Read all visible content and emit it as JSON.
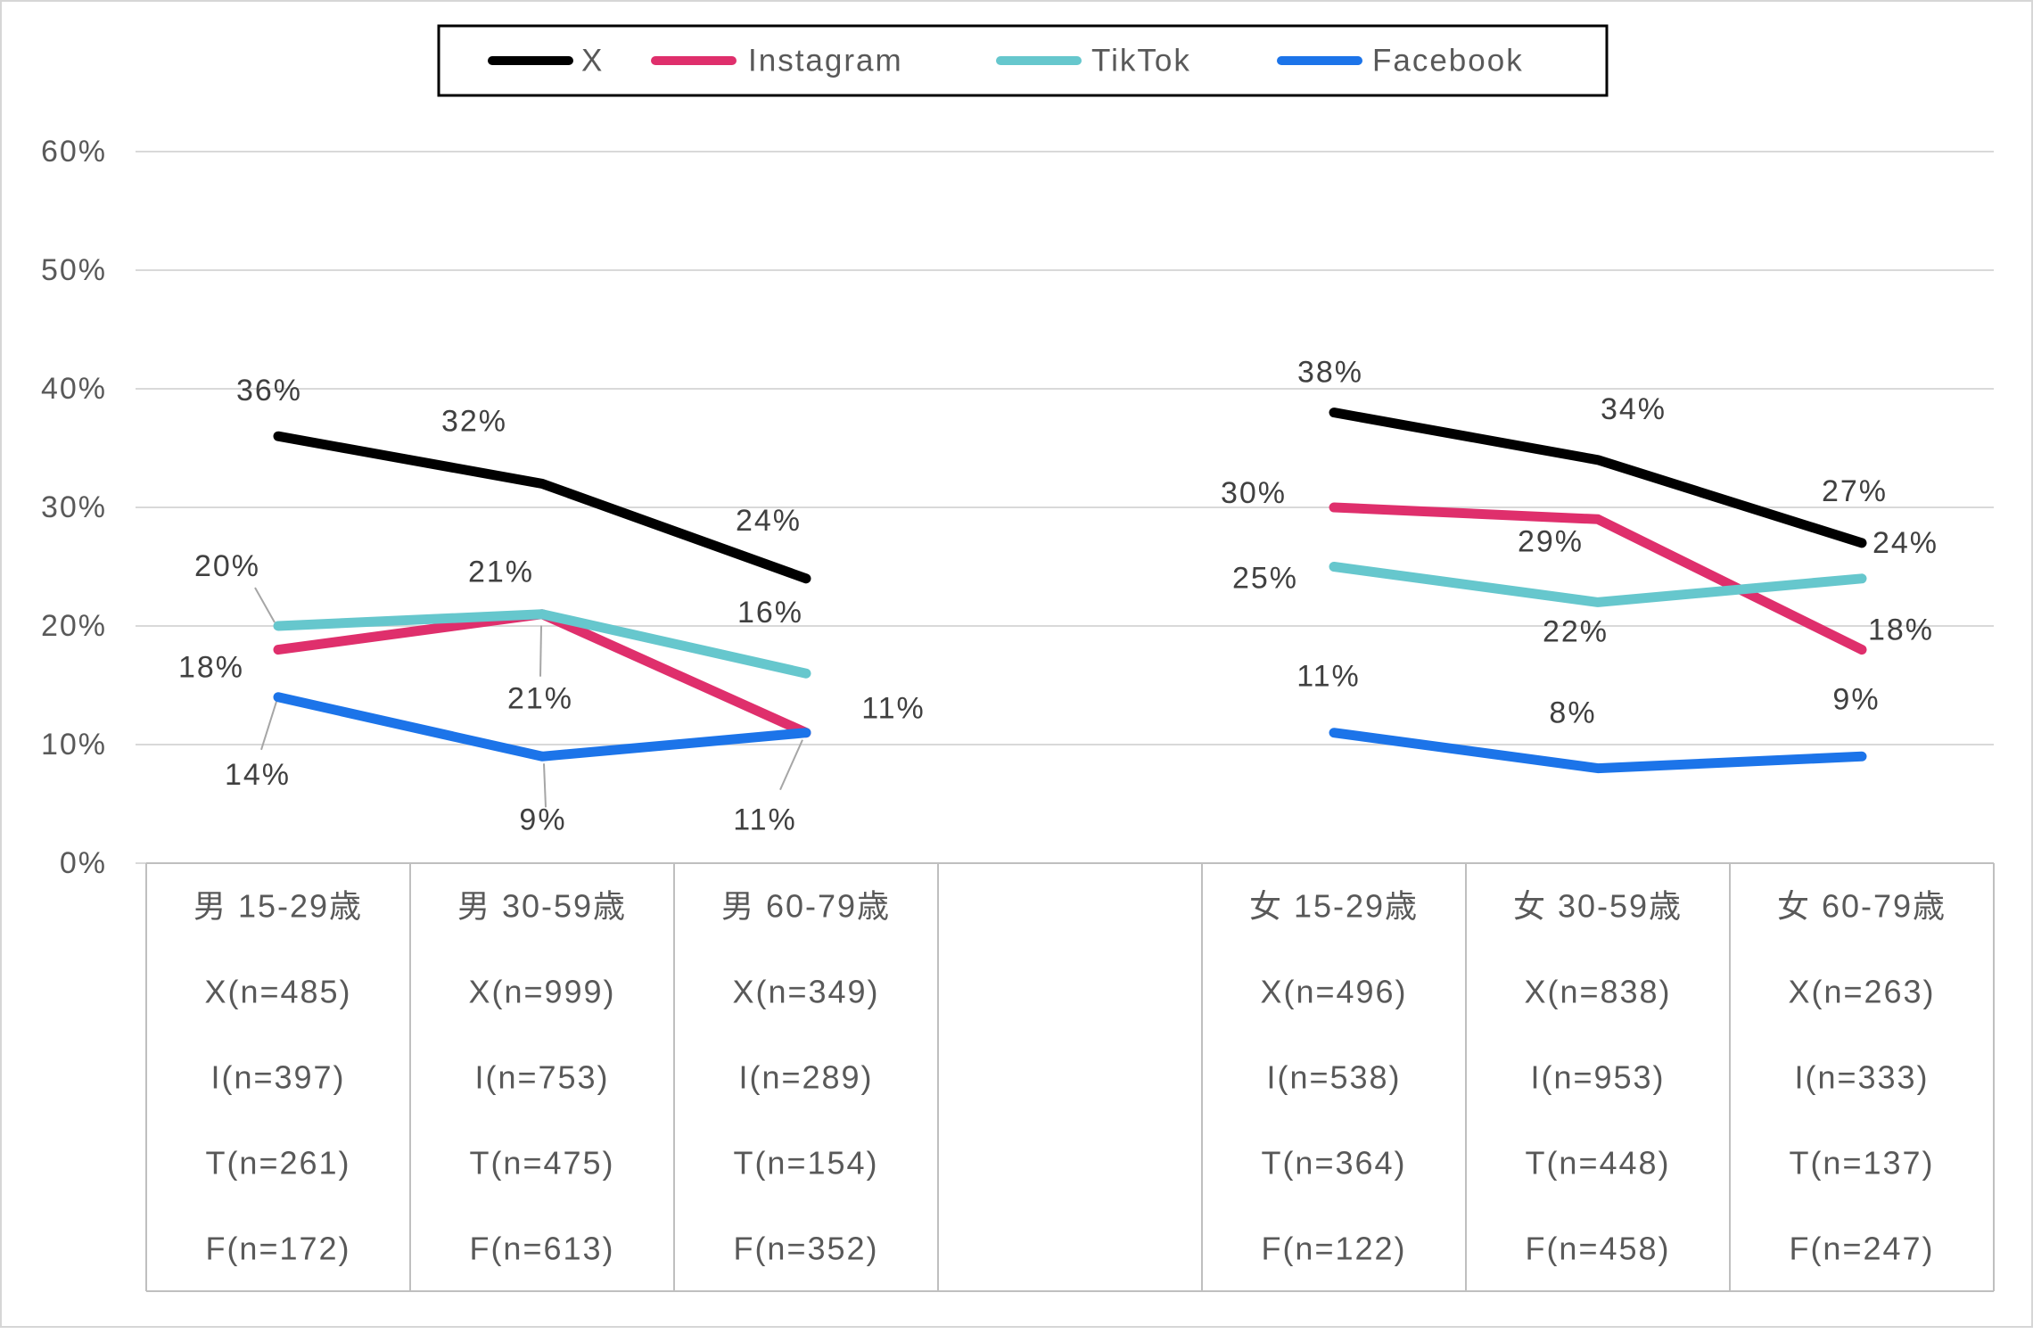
{
  "chart_data": {
    "type": "line",
    "title": "",
    "unit": "%",
    "y_axis": {
      "min": 0,
      "max": 60,
      "step": 10,
      "tick_labels": [
        "0%",
        "10%",
        "20%",
        "30%",
        "40%",
        "50%",
        "60%"
      ],
      "grid": true
    },
    "legend": {
      "position": "top",
      "entries": [
        {
          "label": "X",
          "color": "#000000"
        },
        {
          "label": "Instagram",
          "color": "#df2f6c"
        },
        {
          "label": "TikTok",
          "color": "#66c7cd"
        },
        {
          "label": "Facebook",
          "color": "#1c74e9"
        }
      ]
    },
    "categories": [
      "男 15-29歳",
      "男 30-59歳",
      "男 60-79歳",
      "女 15-29歳",
      "女 30-59歳",
      "女 60-79歳"
    ],
    "series": [
      {
        "name": "X",
        "color": "#000000",
        "values": [
          36,
          32,
          24,
          38,
          34,
          27
        ]
      },
      {
        "name": "Instagram",
        "color": "#df2f6c",
        "values": [
          18,
          21,
          11,
          30,
          29,
          18
        ]
      },
      {
        "name": "TikTok",
        "color": "#66c7cd",
        "values": [
          20,
          21,
          16,
          25,
          22,
          24
        ]
      },
      {
        "name": "Facebook",
        "color": "#1c74e9",
        "values": [
          14,
          9,
          11,
          11,
          8,
          9
        ]
      }
    ],
    "data_labels": [
      [
        "36%",
        "32%",
        "24%",
        "38%",
        "34%",
        "27%"
      ],
      [
        "18%",
        "21%",
        "11%",
        "30%",
        "29%",
        "18%"
      ],
      [
        "20%",
        "21%",
        "16%",
        "25%",
        "22%",
        "24%"
      ],
      [
        "14%",
        "9%",
        "11%",
        "11%",
        "8%",
        "9%"
      ]
    ],
    "category_table": {
      "columns": [
        {
          "header": "男 15-29歳",
          "rows": [
            "X(n=485)",
            "I(n=397)",
            "T(n=261)",
            "F(n=172)"
          ]
        },
        {
          "header": "男 30-59歳",
          "rows": [
            "X(n=999)",
            "I(n=753)",
            "T(n=475)",
            "F(n=613)"
          ]
        },
        {
          "header": "男 60-79歳",
          "rows": [
            "X(n=349)",
            "I(n=289)",
            "T(n=154)",
            "F(n=352)"
          ]
        },
        {
          "header": "",
          "rows": [
            "",
            "",
            "",
            ""
          ]
        },
        {
          "header": "女 15-29歳",
          "rows": [
            "X(n=496)",
            "I(n=538)",
            "T(n=364)",
            "F(n=122)"
          ]
        },
        {
          "header": "女 30-59歳",
          "rows": [
            "X(n=838)",
            "I(n=953)",
            "T(n=448)",
            "F(n=458)"
          ]
        },
        {
          "header": "女 60-79歳",
          "rows": [
            "X(n=263)",
            "I(n=333)",
            "T(n=137)",
            "F(n=247)"
          ]
        }
      ]
    },
    "colors": {
      "grid": "#d9d9d9",
      "table_border": "#bfbfbf",
      "axis_text": "#595959",
      "label_text": "#404040",
      "leader": "#a6a6a6",
      "legend_border": "#000000",
      "background": "#ffffff"
    }
  }
}
